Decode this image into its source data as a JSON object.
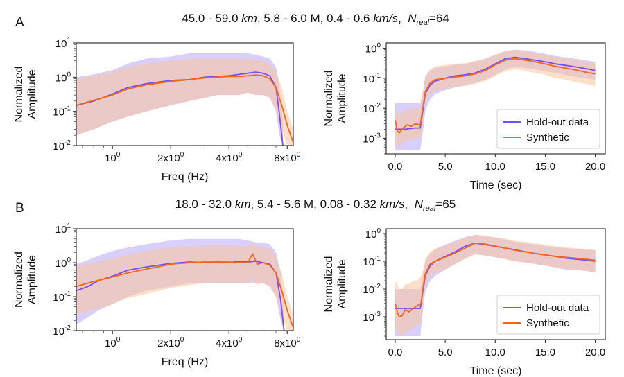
{
  "colors": {
    "holdout": "#7B4CF0",
    "synthetic": "#F2661E",
    "holdout_band": "#B9A8F7",
    "synthetic_band": "#F7C49A"
  },
  "rows": [
    {
      "panel_label": "A",
      "title": {
        "depth": "45.0 - 59.0",
        "depth_unit": "km",
        "mag": ", 5.8 - 6.0 M, ",
        "vel": "0.4 - 0.6",
        "vel_unit": "km/s",
        "sep": ",  ",
        "n": "N",
        "n_sub": "real",
        "n_val": "=64"
      }
    },
    {
      "panel_label": "B",
      "title": {
        "depth": "18.0 - 32.0",
        "depth_unit": "km",
        "mag": ", 5.4 - 5.6 M, ",
        "vel": "0.08 - 0.32",
        "vel_unit": "km/s",
        "sep": ",  ",
        "n": "N",
        "n_sub": "real",
        "n_val": "=65"
      }
    }
  ],
  "chart_data": [
    {
      "type": "line",
      "id": "A-freq",
      "xlabel": "Freq (Hz)",
      "ylabel": [
        "Normalized",
        "Amplitude"
      ],
      "xscale": "log",
      "yscale": "log",
      "xlim": [
        0.65,
        8.6
      ],
      "ylim": [
        0.01,
        10
      ],
      "xticks": [
        {
          "v": 1,
          "b": "10",
          "e": "0"
        },
        {
          "v": 2,
          "b": "2x10",
          "e": "0"
        },
        {
          "v": 4,
          "b": "4x10",
          "e": "0"
        },
        {
          "v": 8,
          "b": "8x10",
          "e": "0"
        }
      ],
      "yticks": [
        {
          "v": 0.01,
          "b": "10",
          "e": "-2"
        },
        {
          "v": 0.1,
          "b": "10",
          "e": "-1"
        },
        {
          "v": 1,
          "b": "10",
          "e": "0"
        },
        {
          "v": 10,
          "b": "10",
          "e": "1"
        }
      ],
      "series": [
        {
          "name": "Hold-out data",
          "color": "holdout",
          "x": [
            0.65,
            0.8,
            1.0,
            1.2,
            1.5,
            2.0,
            2.5,
            3.0,
            3.5,
            4.0,
            4.5,
            5.0,
            5.5,
            6.0,
            6.5,
            7.0,
            7.3,
            7.6
          ],
          "y": [
            0.15,
            0.2,
            0.32,
            0.5,
            0.65,
            0.8,
            0.85,
            1.0,
            1.05,
            1.1,
            1.2,
            1.3,
            1.4,
            1.3,
            1.1,
            0.5,
            0.08,
            0.01
          ],
          "band_lo": [
            0.02,
            0.03,
            0.05,
            0.07,
            0.1,
            0.15,
            0.2,
            0.25,
            0.3,
            0.3,
            0.3,
            0.35,
            0.3,
            0.3,
            0.25,
            0.1,
            0.02,
            0.01
          ],
          "band_hi": [
            1.0,
            1.2,
            1.6,
            2.5,
            3.5,
            4.0,
            5.0,
            5.0,
            5.0,
            5.0,
            5.0,
            5.0,
            4.5,
            4.0,
            3.5,
            2.0,
            0.5,
            0.05
          ]
        },
        {
          "name": "Synthetic",
          "color": "synthetic",
          "x": [
            0.65,
            0.8,
            1.0,
            1.2,
            1.5,
            2.0,
            2.5,
            3.0,
            3.5,
            4.0,
            4.5,
            5.0,
            5.5,
            6.0,
            6.5,
            7.0,
            7.5,
            8.0,
            8.6
          ],
          "y": [
            0.15,
            0.21,
            0.3,
            0.45,
            0.6,
            0.75,
            0.85,
            0.95,
            1.0,
            1.05,
            1.05,
            1.1,
            1.15,
            1.1,
            0.9,
            0.5,
            0.15,
            0.04,
            0.012
          ],
          "band_lo": [
            0.02,
            0.03,
            0.05,
            0.07,
            0.1,
            0.15,
            0.2,
            0.25,
            0.3,
            0.3,
            0.3,
            0.35,
            0.3,
            0.3,
            0.25,
            0.1,
            0.03,
            0.01,
            0.01
          ],
          "band_hi": [
            0.9,
            1.1,
            1.4,
            2.0,
            2.5,
            3.0,
            3.5,
            3.5,
            3.5,
            3.5,
            3.5,
            3.5,
            3.2,
            3.0,
            2.5,
            1.5,
            0.5,
            0.1,
            0.03
          ]
        }
      ]
    },
    {
      "type": "line",
      "id": "A-time",
      "xlabel": "Time (sec)",
      "ylabel": [
        "Normalized",
        "Amplitude"
      ],
      "xscale": "linear",
      "yscale": "log",
      "xlim": [
        -0.9,
        21.0
      ],
      "ylim": [
        0.0003,
        1.5
      ],
      "xticks": [
        {
          "v": 0,
          "t": "0.0"
        },
        {
          "v": 5,
          "t": "5.0"
        },
        {
          "v": 10,
          "t": "10.0"
        },
        {
          "v": 15,
          "t": "15.0"
        },
        {
          "v": 20,
          "t": "20.0"
        }
      ],
      "yticks": [
        {
          "v": 0.001,
          "b": "10",
          "e": "-3"
        },
        {
          "v": 0.01,
          "b": "10",
          "e": "-2"
        },
        {
          "v": 0.1,
          "b": "10",
          "e": "-1"
        },
        {
          "v": 1,
          "b": "10",
          "e": "0"
        }
      ],
      "legend": "bottom-right",
      "series": [
        {
          "name": "Hold-out data",
          "color": "holdout",
          "x": [
            0,
            0.5,
            1,
            1.5,
            2,
            2.5,
            2.8,
            3.0,
            3.5,
            4,
            5,
            6,
            7,
            8,
            9,
            10,
            11,
            12,
            13,
            14,
            15,
            16,
            17,
            18,
            19,
            20
          ],
          "y": [
            0.002,
            0.002,
            0.002,
            0.0021,
            0.0022,
            0.0022,
            0.01,
            0.03,
            0.06,
            0.08,
            0.1,
            0.12,
            0.13,
            0.15,
            0.2,
            0.3,
            0.45,
            0.5,
            0.45,
            0.4,
            0.35,
            0.3,
            0.27,
            0.24,
            0.21,
            0.18
          ],
          "band_lo": [
            0.0004,
            0.0004,
            0.0004,
            0.0004,
            0.0004,
            0.0004,
            0.002,
            0.008,
            0.02,
            0.03,
            0.04,
            0.05,
            0.06,
            0.07,
            0.09,
            0.13,
            0.2,
            0.25,
            0.22,
            0.2,
            0.17,
            0.15,
            0.13,
            0.11,
            0.1,
            0.09
          ],
          "band_hi": [
            0.015,
            0.015,
            0.015,
            0.015,
            0.015,
            0.015,
            0.04,
            0.12,
            0.18,
            0.22,
            0.25,
            0.28,
            0.3,
            0.35,
            0.45,
            0.6,
            0.8,
            0.9,
            0.85,
            0.75,
            0.65,
            0.55,
            0.5,
            0.45,
            0.4,
            0.35
          ]
        },
        {
          "name": "Synthetic",
          "color": "synthetic",
          "x": [
            0,
            0.2,
            0.4,
            0.8,
            1.2,
            1.6,
            2,
            2.5,
            2.8,
            3.0,
            3.5,
            4,
            5,
            6,
            7,
            8,
            9,
            10,
            11,
            12,
            13,
            14,
            15,
            16,
            17,
            18,
            19,
            20
          ],
          "y": [
            0.004,
            0.0018,
            0.0015,
            0.0022,
            0.0028,
            0.0025,
            0.003,
            0.0028,
            0.012,
            0.035,
            0.07,
            0.09,
            0.1,
            0.11,
            0.12,
            0.14,
            0.18,
            0.28,
            0.4,
            0.45,
            0.4,
            0.35,
            0.3,
            0.25,
            0.22,
            0.19,
            0.16,
            0.14
          ],
          "band_lo": [
            0.0008,
            0.0006,
            0.0005,
            0.0007,
            0.0009,
            0.0008,
            0.001,
            0.001,
            0.004,
            0.015,
            0.03,
            0.04,
            0.045,
            0.05,
            0.055,
            0.065,
            0.08,
            0.12,
            0.17,
            0.2,
            0.18,
            0.15,
            0.13,
            0.1,
            0.09,
            0.075,
            0.065,
            0.055
          ],
          "band_hi": [
            0.01,
            0.008,
            0.006,
            0.008,
            0.009,
            0.009,
            0.01,
            0.01,
            0.04,
            0.1,
            0.2,
            0.25,
            0.28,
            0.3,
            0.32,
            0.38,
            0.45,
            0.6,
            0.8,
            0.9,
            0.8,
            0.7,
            0.6,
            0.5,
            0.45,
            0.4,
            0.35,
            0.3
          ]
        }
      ]
    },
    {
      "type": "line",
      "id": "B-freq",
      "xlabel": "Freq (Hz)",
      "ylabel": [
        "Normalized",
        "Amplitude"
      ],
      "xscale": "log",
      "yscale": "log",
      "xlim": [
        0.65,
        8.6
      ],
      "ylim": [
        0.01,
        10
      ],
      "xticks": [
        {
          "v": 1,
          "b": "10",
          "e": "0"
        },
        {
          "v": 2,
          "b": "2x10",
          "e": "0"
        },
        {
          "v": 4,
          "b": "4x10",
          "e": "0"
        },
        {
          "v": 8,
          "b": "8x10",
          "e": "0"
        }
      ],
      "yticks": [
        {
          "v": 0.01,
          "b": "10",
          "e": "-2"
        },
        {
          "v": 0.1,
          "b": "10",
          "e": "-1"
        },
        {
          "v": 1,
          "b": "10",
          "e": "0"
        },
        {
          "v": 10,
          "b": "10",
          "e": "1"
        }
      ],
      "series": [
        {
          "name": "Hold-out data",
          "color": "holdout",
          "x": [
            0.65,
            0.75,
            0.85,
            1.0,
            1.2,
            1.5,
            2.0,
            2.5,
            3.0,
            3.5,
            4.0,
            4.5,
            5.0,
            5.5,
            6.0,
            6.5,
            7.0,
            7.4,
            7.7
          ],
          "y": [
            0.15,
            0.2,
            0.3,
            0.4,
            0.6,
            0.75,
            0.95,
            1.05,
            1.0,
            1.05,
            1.0,
            1.1,
            1.05,
            1.1,
            1.0,
            0.9,
            0.5,
            0.08,
            0.01
          ],
          "band_lo": [
            0.015,
            0.025,
            0.04,
            0.06,
            0.1,
            0.15,
            0.2,
            0.25,
            0.25,
            0.25,
            0.25,
            0.25,
            0.25,
            0.25,
            0.25,
            0.2,
            0.1,
            0.02,
            0.01
          ],
          "band_hi": [
            0.9,
            1.2,
            1.6,
            2.2,
            2.8,
            3.5,
            4.5,
            5.0,
            5.0,
            5.0,
            5.0,
            5.0,
            4.5,
            4.0,
            3.8,
            3.5,
            2.0,
            0.5,
            0.05
          ]
        },
        {
          "name": "Synthetic",
          "color": "synthetic",
          "x": [
            0.65,
            0.8,
            1.0,
            1.2,
            1.5,
            2.0,
            2.5,
            3.0,
            3.5,
            4.0,
            4.5,
            5.0,
            5.3,
            5.6,
            6.0,
            6.5,
            7.0,
            7.5,
            8.0,
            8.6
          ],
          "y": [
            0.2,
            0.28,
            0.38,
            0.5,
            0.65,
            0.9,
            1.0,
            1.05,
            1.05,
            1.05,
            1.0,
            1.0,
            1.8,
            0.9,
            1.0,
            0.85,
            0.5,
            0.15,
            0.04,
            0.012
          ],
          "band_lo": [
            0.03,
            0.04,
            0.06,
            0.09,
            0.12,
            0.18,
            0.22,
            0.25,
            0.25,
            0.25,
            0.25,
            0.25,
            0.3,
            0.22,
            0.25,
            0.2,
            0.1,
            0.03,
            0.01,
            0.01
          ],
          "band_hi": [
            0.8,
            1.0,
            1.3,
            1.7,
            2.2,
            2.8,
            3.0,
            3.2,
            3.2,
            3.2,
            3.0,
            3.0,
            4.0,
            3.0,
            3.0,
            2.6,
            1.5,
            0.5,
            0.1,
            0.03
          ]
        }
      ]
    },
    {
      "type": "line",
      "id": "B-time",
      "xlabel": "Time (sec)",
      "ylabel": [
        "Normalized",
        "Amplitude"
      ],
      "xscale": "linear",
      "yscale": "log",
      "xlim": [
        -0.9,
        21.0
      ],
      "ylim": [
        0.00015,
        1.5
      ],
      "xticks": [
        {
          "v": 0,
          "t": "0.0"
        },
        {
          "v": 5,
          "t": "5.0"
        },
        {
          "v": 10,
          "t": "10.0"
        },
        {
          "v": 15,
          "t": "15.0"
        },
        {
          "v": 20,
          "t": "20.0"
        }
      ],
      "yticks": [
        {
          "v": 0.001,
          "b": "10",
          "e": "-3"
        },
        {
          "v": 0.01,
          "b": "10",
          "e": "-2"
        },
        {
          "v": 0.1,
          "b": "10",
          "e": "-1"
        },
        {
          "v": 1,
          "b": "10",
          "e": "0"
        }
      ],
      "legend": "bottom-right",
      "series": [
        {
          "name": "Hold-out data",
          "color": "holdout",
          "x": [
            0,
            0.5,
            1,
            1.5,
            2,
            2.5,
            2.8,
            3.0,
            3.5,
            4,
            5,
            6,
            7,
            8,
            9,
            10,
            11,
            12,
            13,
            14,
            15,
            16,
            17,
            18,
            19,
            20
          ],
          "y": [
            0.002,
            0.002,
            0.002,
            0.002,
            0.002,
            0.002,
            0.01,
            0.03,
            0.07,
            0.1,
            0.15,
            0.22,
            0.35,
            0.45,
            0.4,
            0.35,
            0.3,
            0.26,
            0.22,
            0.19,
            0.17,
            0.15,
            0.13,
            0.12,
            0.11,
            0.1
          ],
          "band_lo": [
            0.0002,
            0.0002,
            0.0002,
            0.0002,
            0.0002,
            0.0002,
            0.002,
            0.008,
            0.02,
            0.03,
            0.05,
            0.08,
            0.13,
            0.18,
            0.16,
            0.14,
            0.12,
            0.1,
            0.09,
            0.08,
            0.07,
            0.06,
            0.05,
            0.05,
            0.045,
            0.04
          ],
          "band_hi": [
            0.01,
            0.01,
            0.01,
            0.01,
            0.01,
            0.01,
            0.04,
            0.1,
            0.2,
            0.28,
            0.4,
            0.55,
            0.75,
            0.9,
            0.8,
            0.7,
            0.6,
            0.5,
            0.45,
            0.4,
            0.35,
            0.32,
            0.3,
            0.28,
            0.26,
            0.25
          ]
        },
        {
          "name": "Synthetic",
          "color": "synthetic",
          "x": [
            0,
            0.2,
            0.4,
            0.7,
            1.0,
            1.4,
            1.8,
            2.2,
            2.6,
            2.8,
            3.0,
            3.5,
            4,
            5,
            6,
            7,
            8,
            9,
            10,
            11,
            12,
            13,
            14,
            15,
            16,
            17,
            18,
            19,
            20
          ],
          "y": [
            0.003,
            0.0015,
            0.001,
            0.0011,
            0.0018,
            0.0015,
            0.002,
            0.0025,
            0.003,
            0.012,
            0.035,
            0.08,
            0.1,
            0.14,
            0.2,
            0.3,
            0.45,
            0.42,
            0.35,
            0.3,
            0.25,
            0.22,
            0.19,
            0.17,
            0.15,
            0.14,
            0.13,
            0.12,
            0.11
          ],
          "band_lo": [
            0.0004,
            0.0003,
            0.0002,
            0.0002,
            0.0003,
            0.0003,
            0.0004,
            0.0005,
            0.0006,
            0.004,
            0.012,
            0.03,
            0.04,
            0.05,
            0.08,
            0.12,
            0.18,
            0.16,
            0.14,
            0.12,
            0.1,
            0.09,
            0.08,
            0.07,
            0.06,
            0.055,
            0.05,
            0.045,
            0.04
          ],
          "band_hi": [
            0.02,
            0.015,
            0.01,
            0.01,
            0.015,
            0.015,
            0.02,
            0.02,
            0.03,
            0.05,
            0.12,
            0.22,
            0.28,
            0.35,
            0.5,
            0.7,
            0.9,
            0.85,
            0.75,
            0.65,
            0.55,
            0.5,
            0.45,
            0.4,
            0.35,
            0.32,
            0.3,
            0.28,
            0.26
          ]
        }
      ]
    }
  ]
}
